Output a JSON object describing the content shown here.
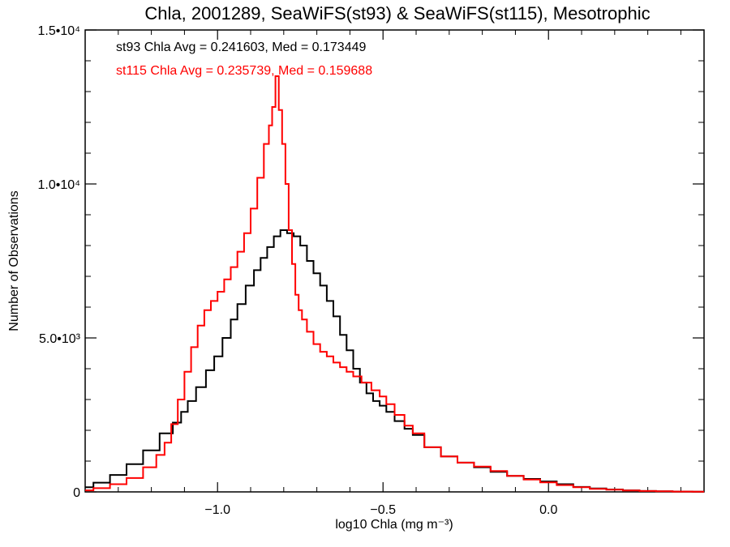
{
  "chart_data": {
    "type": "line",
    "title": "Chla, 2001289, SeaWiFS(st93) & SeaWiFS(st115), Mesotrophic",
    "xlabel": "log10 Chla (mg m⁻³)",
    "ylabel": "Number of Observations",
    "xlim": [
      -1.4,
      0.47
    ],
    "ylim": [
      0,
      15000
    ],
    "x_ticks": [
      {
        "value": -1.0,
        "label": "−1.0"
      },
      {
        "value": -0.5,
        "label": "−0.5"
      },
      {
        "value": 0.0,
        "label": "0.0"
      }
    ],
    "y_ticks": [
      {
        "value": 0,
        "label": "0"
      },
      {
        "value": 5000,
        "label": "5.0•10³"
      },
      {
        "value": 10000,
        "label": "1.0•10⁴"
      },
      {
        "value": 15000,
        "label": "1.5•10⁴"
      }
    ],
    "annotations": [
      {
        "text": "st93 Chla Avg = 0.241603, Med = 0.173449",
        "color": "#000000"
      },
      {
        "text": "st115 Chla Avg = 0.235739, Med = 0.159688",
        "color": "#ff0000"
      }
    ],
    "series": [
      {
        "color": "#000000",
        "x": [
          -1.4,
          -1.35,
          -1.3,
          -1.25,
          -1.2,
          -1.15,
          -1.12,
          -1.1,
          -1.08,
          -1.05,
          -1.02,
          -1.0,
          -0.97,
          -0.95,
          -0.93,
          -0.9,
          -0.88,
          -0.86,
          -0.84,
          -0.82,
          -0.8,
          -0.78,
          -0.76,
          -0.74,
          -0.72,
          -0.7,
          -0.68,
          -0.66,
          -0.64,
          -0.62,
          -0.6,
          -0.58,
          -0.56,
          -0.54,
          -0.52,
          -0.5,
          -0.48,
          -0.45,
          -0.42,
          -0.4,
          -0.35,
          -0.3,
          -0.25,
          -0.2,
          -0.15,
          -0.1,
          -0.05,
          0.0,
          0.05,
          0.1,
          0.15,
          0.2,
          0.25,
          0.3,
          0.35,
          0.4,
          0.47
        ],
        "values": [
          150,
          300,
          550,
          900,
          1350,
          1900,
          2250,
          2600,
          2950,
          3400,
          3950,
          4400,
          5000,
          5600,
          6100,
          6700,
          7200,
          7600,
          7950,
          8300,
          8500,
          8400,
          8300,
          8000,
          7500,
          7100,
          6700,
          6200,
          5700,
          5100,
          4600,
          4000,
          3550,
          3200,
          2950,
          2800,
          2600,
          2300,
          2050,
          1850,
          1450,
          1150,
          950,
          800,
          650,
          520,
          420,
          340,
          250,
          160,
          110,
          80,
          50,
          30,
          20,
          10,
          5
        ]
      },
      {
        "color": "#ff0000",
        "x": [
          -1.4,
          -1.35,
          -1.3,
          -1.25,
          -1.2,
          -1.17,
          -1.15,
          -1.13,
          -1.11,
          -1.09,
          -1.07,
          -1.05,
          -1.03,
          -1.01,
          -0.99,
          -0.97,
          -0.95,
          -0.93,
          -0.91,
          -0.89,
          -0.87,
          -0.85,
          -0.84,
          -0.83,
          -0.82,
          -0.81,
          -0.8,
          -0.79,
          -0.78,
          -0.77,
          -0.76,
          -0.75,
          -0.74,
          -0.72,
          -0.7,
          -0.68,
          -0.66,
          -0.64,
          -0.62,
          -0.6,
          -0.58,
          -0.55,
          -0.52,
          -0.5,
          -0.48,
          -0.45,
          -0.42,
          -0.4,
          -0.35,
          -0.3,
          -0.25,
          -0.2,
          -0.15,
          -0.1,
          -0.05,
          0.0,
          0.05,
          0.1,
          0.15,
          0.2,
          0.25,
          0.3,
          0.35,
          0.4,
          0.47
        ],
        "values": [
          50,
          120,
          250,
          450,
          800,
          1200,
          1600,
          2200,
          3000,
          3900,
          4700,
          5400,
          5900,
          6200,
          6500,
          6900,
          7300,
          7800,
          8400,
          9200,
          10200,
          11300,
          11900,
          12500,
          13500,
          12400,
          11300,
          10000,
          8500,
          7400,
          6400,
          5900,
          5600,
          5200,
          4800,
          4550,
          4400,
          4200,
          4050,
          3900,
          3750,
          3550,
          3300,
          3100,
          2850,
          2500,
          2150,
          1900,
          1450,
          1150,
          950,
          820,
          680,
          520,
          400,
          310,
          220,
          150,
          100,
          70,
          45,
          30,
          20,
          10,
          5
        ]
      }
    ]
  }
}
